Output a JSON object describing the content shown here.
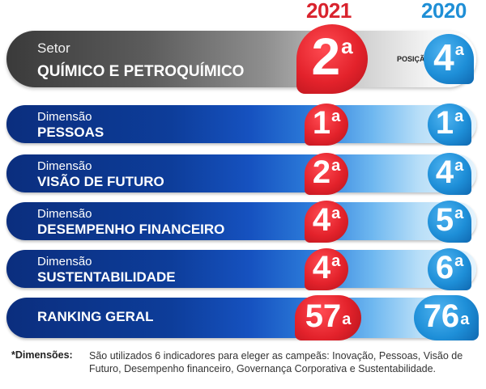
{
  "years": {
    "current": "2021",
    "previous": "2020"
  },
  "sector": {
    "small_label": "Setor",
    "big_label": "QUÍMICO E PETROQUÍMICO",
    "rank_2021": "2",
    "rank_2020": "4",
    "suffix": "a",
    "posicao_label": "POSIÇÃO"
  },
  "dimensions": [
    {
      "small_label": "Dimensão",
      "big_label": "PESSOAS",
      "rank_2021": "1",
      "rank_2020": "1"
    },
    {
      "small_label": "Dimensão",
      "big_label": "VISÃO DE FUTURO",
      "rank_2021": "2",
      "rank_2020": "4"
    },
    {
      "small_label": "Dimensão",
      "big_label": "DESEMPENHO FINANCEIRO",
      "rank_2021": "4",
      "rank_2020": "5"
    },
    {
      "small_label": "Dimensão",
      "big_label": "SUSTENTABILIDADE",
      "rank_2021": "4",
      "rank_2020": "6"
    }
  ],
  "ranking": {
    "big_label": "RANKING GERAL",
    "rank_2021": "57",
    "rank_2020": "76"
  },
  "suffix": "a",
  "footnote": {
    "label": "*Dimensões:",
    "text": "São utilizados 6 indicadores para eleger as campeãs: Inovação, Pessoas, Visão de Futuro, Desempenho financeiro, Governança Corporativa e Sustentabilidade."
  },
  "colors": {
    "red_badge": "#e3222b",
    "blue_badge": "#1e8fd8",
    "dimension_bar": "#0d3d9a",
    "sector_bar": "#5c5c5c"
  }
}
